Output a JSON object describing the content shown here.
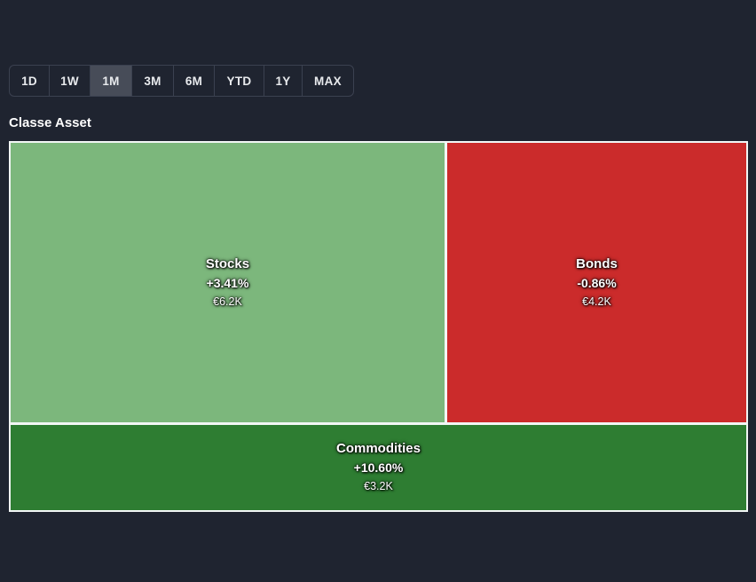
{
  "page": {
    "background_color": "#1f2430"
  },
  "timeframe": {
    "selected": "1M",
    "buttons": [
      {
        "label": "1D"
      },
      {
        "label": "1W"
      },
      {
        "label": "1M"
      },
      {
        "label": "3M"
      },
      {
        "label": "6M"
      },
      {
        "label": "YTD"
      },
      {
        "label": "1Y"
      },
      {
        "label": "MAX"
      }
    ]
  },
  "section": {
    "title": "Classe Asset"
  },
  "chart_data": {
    "type": "treemap",
    "title": "Classe Asset",
    "currency": "EUR",
    "items": [
      {
        "label": "Stocks",
        "change_pct": "+3.41%",
        "value_label": "€6.2K",
        "value": 6200,
        "color": "#7cb77c"
      },
      {
        "label": "Bonds",
        "change_pct": "-0.86%",
        "value_label": "€4.2K",
        "value": 4200,
        "color": "#cb2b2b"
      },
      {
        "label": "Commodities",
        "change_pct": "+10.60%",
        "value_label": "€3.2K",
        "value": 3200,
        "color": "#2e7d32"
      }
    ],
    "layout": {
      "gap_color": "#ffffff",
      "text_color": "#ffffff",
      "top_row_items": [
        "Stocks",
        "Bonds"
      ],
      "bottom_row_items": [
        "Commodities"
      ]
    }
  }
}
